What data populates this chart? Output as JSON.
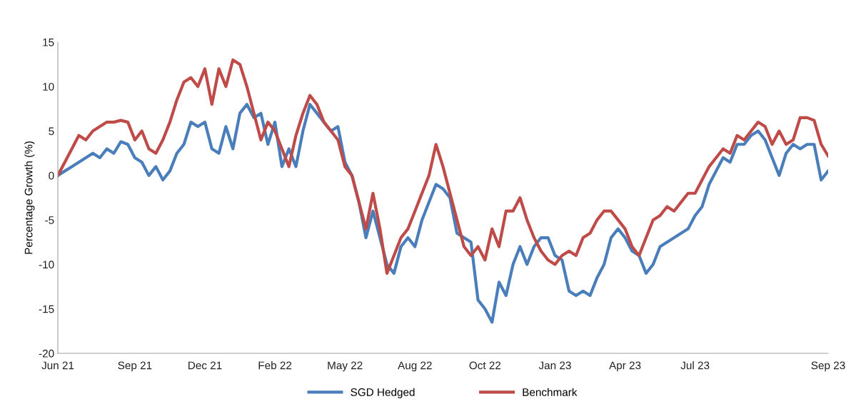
{
  "chart_data": {
    "type": "line",
    "ylabel": "Percentage Growth (%)",
    "categories": [
      "Jun 21",
      null,
      null,
      null,
      null,
      null,
      null,
      null,
      null,
      null,
      null,
      "Sep 21",
      null,
      null,
      null,
      null,
      null,
      null,
      null,
      null,
      null,
      "Dec 21",
      null,
      null,
      null,
      null,
      null,
      null,
      null,
      null,
      null,
      "Feb 22",
      null,
      null,
      null,
      null,
      null,
      null,
      null,
      null,
      null,
      "May 22",
      null,
      null,
      null,
      null,
      null,
      null,
      null,
      null,
      null,
      "Aug 22",
      null,
      null,
      null,
      null,
      null,
      null,
      null,
      null,
      null,
      "Oct 22",
      null,
      null,
      null,
      null,
      null,
      null,
      null,
      null,
      null,
      "Jan 23",
      null,
      null,
      null,
      null,
      null,
      null,
      null,
      null,
      null,
      "Apr 23",
      null,
      null,
      null,
      null,
      null,
      null,
      null,
      null,
      null,
      "Jul 23",
      null,
      null,
      null,
      null,
      null,
      null,
      null,
      null,
      null,
      null,
      null,
      null,
      null,
      null,
      null,
      null,
      null,
      null,
      "Sep 23"
    ],
    "series": [
      {
        "name": "SGD Hedged",
        "color": "#4a7ebb",
        "values": [
          0,
          0.5,
          1,
          1.5,
          2,
          2.5,
          2,
          3,
          2.5,
          3.8,
          3.5,
          2,
          1.5,
          0,
          1,
          -0.5,
          0.5,
          2.5,
          3.5,
          6,
          5.5,
          6,
          3,
          2.5,
          5.5,
          3,
          7,
          8,
          6.5,
          7,
          3.5,
          6,
          1,
          3,
          1,
          5,
          8,
          7,
          6,
          5,
          5.5,
          1.5,
          0,
          -3,
          -7,
          -4,
          -7,
          -10,
          -11,
          -8,
          -7,
          -8,
          -5,
          -3,
          -1,
          -1.5,
          -2.5,
          -6.5,
          -7,
          -7.5,
          -14,
          -15,
          -16.5,
          -12,
          -13.5,
          -10,
          -8,
          -10,
          -8,
          -7,
          -7,
          -9,
          -9.5,
          -13,
          -13.5,
          -13,
          -13.5,
          -11.5,
          -10,
          -7,
          -6,
          -7,
          -8.5,
          -9,
          -11,
          -10,
          -8,
          -7.5,
          -7,
          -6.5,
          -6,
          -4.5,
          -3.5,
          -1,
          0.5,
          2,
          1.5,
          3.5,
          3.5,
          4.5,
          5,
          4,
          2,
          0,
          2.5,
          3.5,
          3,
          3.5,
          3.5,
          -0.5,
          0.5
        ]
      },
      {
        "name": "Benchmark",
        "color": "#be4b48",
        "values": [
          0,
          1.5,
          3,
          4.5,
          4,
          5,
          5.5,
          6,
          6,
          6.2,
          6,
          4,
          5,
          3,
          2.5,
          4,
          6,
          8.5,
          10.5,
          11,
          10,
          12,
          8,
          12,
          10,
          13,
          12.5,
          10,
          7,
          4,
          6,
          5,
          3,
          1,
          4.5,
          7,
          9,
          8,
          6,
          5,
          4,
          1,
          0,
          -3,
          -6,
          -2,
          -6,
          -11,
          -9,
          -7,
          -6,
          -4,
          -2,
          0,
          3.5,
          1,
          -2,
          -5,
          -8,
          -9,
          -8,
          -9.5,
          -6,
          -8,
          -4,
          -4,
          -2.5,
          -5,
          -7,
          -8.5,
          -9.5,
          -10,
          -9,
          -8.5,
          -9,
          -7,
          -6.5,
          -5,
          -4,
          -4,
          -5,
          -6,
          -8,
          -9,
          -7,
          -5,
          -4.5,
          -3.5,
          -4,
          -3,
          -2,
          -2,
          -0.5,
          1,
          2,
          3,
          2.5,
          4.5,
          4,
          5,
          6,
          5.5,
          3.5,
          5,
          3.5,
          4,
          6.5,
          6.5,
          6.2,
          3.5,
          2.2
        ]
      }
    ],
    "ylim": [
      -20,
      15
    ],
    "yticks": [
      -20,
      -15,
      -10,
      -5,
      0,
      5,
      10,
      15
    ],
    "grid": false,
    "legend": "bottom",
    "marker": "none",
    "line_style": "solid"
  }
}
